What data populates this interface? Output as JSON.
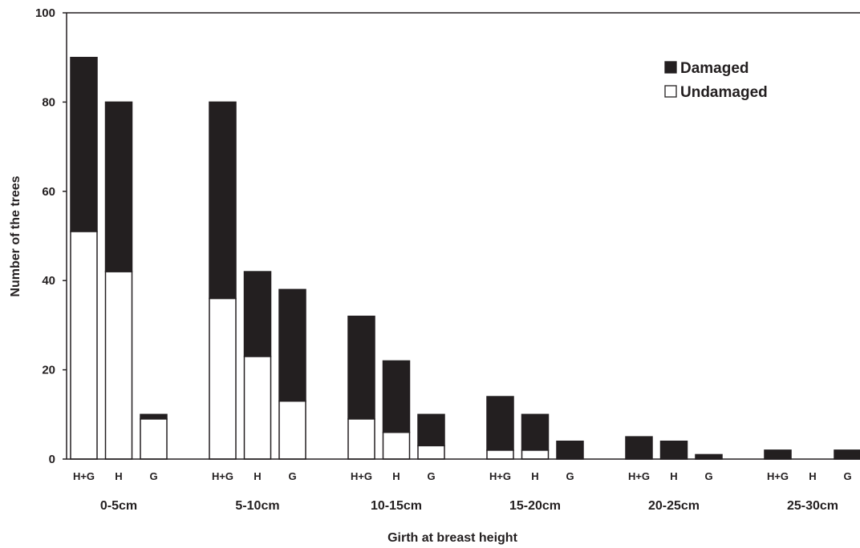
{
  "colors": {
    "damaged": "#231f20",
    "undamaged": "#ffffff",
    "axis": "#231f20"
  },
  "chart_data": {
    "type": "bar",
    "stacked": true,
    "xlabel": "Girth at breast height",
    "ylabel": "Number of the trees",
    "ylim": [
      0,
      100
    ],
    "yticks": [
      0,
      20,
      40,
      60,
      80,
      100
    ],
    "grid": false,
    "legend_position": "top-right",
    "groups": [
      "0-5cm",
      "5-10cm",
      "10-15cm",
      "15-20cm",
      "20-25cm",
      "25-30cm"
    ],
    "subcategories": [
      "H+G",
      "H",
      "G"
    ],
    "series": [
      {
        "name": "Damaged",
        "color": "#231f20",
        "values": [
          [
            39,
            38,
            1
          ],
          [
            44,
            19,
            25
          ],
          [
            23,
            16,
            7
          ],
          [
            12,
            8,
            4
          ],
          [
            5,
            4,
            1
          ],
          [
            2,
            0,
            2
          ]
        ]
      },
      {
        "name": "Undamaged",
        "color": "#ffffff",
        "values": [
          [
            51,
            42,
            9
          ],
          [
            36,
            23,
            13
          ],
          [
            9,
            6,
            3
          ],
          [
            2,
            2,
            0
          ],
          [
            0,
            0,
            0
          ],
          [
            0,
            0,
            0
          ]
        ]
      }
    ]
  }
}
